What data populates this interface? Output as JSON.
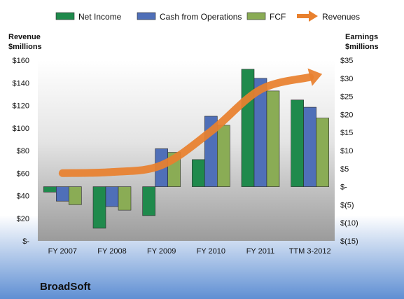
{
  "chart_data": {
    "type": "bar",
    "company": "BroadSoft",
    "categories": [
      "FY 2007",
      "FY 2008",
      "FY 2009",
      "FY 2010",
      "FY 2011",
      "TTM 3-2012"
    ],
    "left_axis": {
      "title_line1": "Revenue",
      "title_line2": "$millions",
      "ylim": [
        0,
        160
      ],
      "ticks": [
        0,
        20,
        40,
        60,
        80,
        100,
        120,
        140,
        160
      ],
      "tick_labels": [
        "$-",
        "$20",
        "$40",
        "$60",
        "$80",
        "$100",
        "$120",
        "$140",
        "$160"
      ]
    },
    "right_axis": {
      "title_line1": "Earnings",
      "title_line2": "$millions",
      "ylim": [
        -15,
        35
      ],
      "ticks": [
        -15,
        -10,
        -5,
        0,
        5,
        10,
        15,
        20,
        25,
        30,
        35
      ],
      "tick_labels": [
        "$(15)",
        "$(10)",
        "$(5)",
        "$-",
        "$5",
        "$10",
        "$15",
        "$20",
        "$25",
        "$30",
        "$35"
      ]
    },
    "series": [
      {
        "name": "Net Income",
        "axis": "right",
        "kind": "bar",
        "color": "#1f8a4c",
        "values": [
          -1.5,
          -11.5,
          -8,
          7.5,
          32.5,
          24
        ]
      },
      {
        "name": "Cash from Operations",
        "axis": "right",
        "kind": "bar",
        "color": "#4f6fb8",
        "values": [
          -4,
          -5.5,
          10.5,
          19.5,
          30,
          22
        ]
      },
      {
        "name": "FCF",
        "axis": "right",
        "kind": "bar",
        "color": "#8aac55",
        "values": [
          -5,
          -6.5,
          9.5,
          17,
          26.5,
          19
        ]
      },
      {
        "name": "Revenues",
        "axis": "left",
        "kind": "line",
        "color": "#e8802e",
        "values": [
          60,
          61,
          67,
          97,
          134,
          145
        ]
      }
    ],
    "legend_position": "top",
    "grid": false
  }
}
